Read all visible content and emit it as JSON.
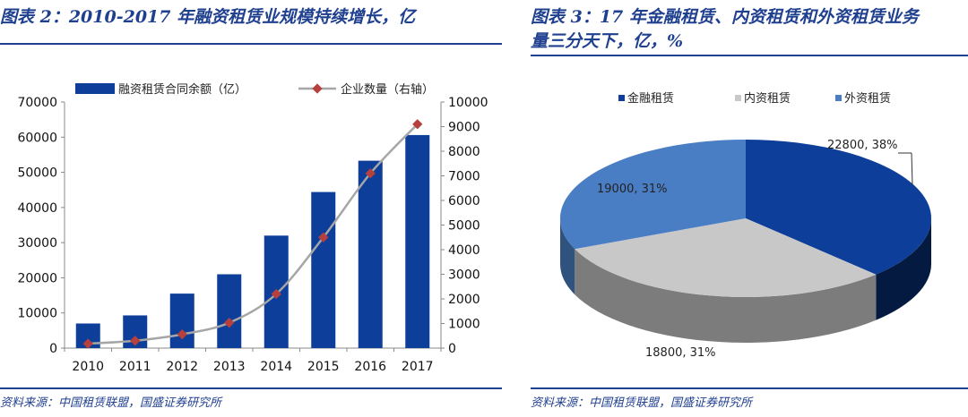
{
  "left": {
    "title": "图表 2：2010-2017 年融资租赁业规模持续增长，亿",
    "source": "资料来源：中国租赁联盟，国盛证券研究所",
    "chart_data": {
      "type": "bar",
      "categories": [
        "2010",
        "2011",
        "2012",
        "2013",
        "2014",
        "2015",
        "2016",
        "2017"
      ],
      "series": [
        {
          "name": "融资租赁合同余额（亿）",
          "type": "bar",
          "axis": "left",
          "values": [
            7000,
            9300,
            15500,
            21000,
            32000,
            44400,
            53300,
            60600
          ]
        },
        {
          "name": "企业数量（右轴）",
          "type": "line",
          "axis": "right",
          "values": [
            180,
            300,
            560,
            1030,
            2200,
            4500,
            7100,
            9100
          ]
        }
      ],
      "ylim_left": [
        0,
        70000
      ],
      "yticks_left": [
        0,
        10000,
        20000,
        30000,
        40000,
        50000,
        60000,
        70000
      ],
      "ylim_right": [
        0,
        10000
      ],
      "yticks_right": [
        0,
        1000,
        2000,
        3000,
        4000,
        5000,
        6000,
        7000,
        8000,
        9000,
        10000
      ],
      "legend_position": "top",
      "grid": false,
      "colors": {
        "bar": "#0d3e99",
        "line": "#a6a6a6",
        "marker": "#b5403e"
      }
    }
  },
  "right": {
    "title": "图表 3：17 年金融租赁、内资租赁和外资租赁业务\n量三分天下，亿，%",
    "source": "资料来源：中国租赁联盟，国盛证券研究所",
    "chart_data": {
      "type": "pie",
      "slices": [
        {
          "name": "金融租赁",
          "value": 22800,
          "percent": 38,
          "label": "22800, 38%",
          "color": "#0d3e99"
        },
        {
          "name": "内资租赁",
          "value": 18800,
          "percent": 31,
          "label": "18800, 31%",
          "color": "#c8c8c8"
        },
        {
          "name": "外资租赁",
          "value": 19000,
          "percent": 31,
          "label": "19000, 31%",
          "color": "#4a7ec4"
        }
      ],
      "legend_position": "top",
      "style": "3d"
    }
  }
}
